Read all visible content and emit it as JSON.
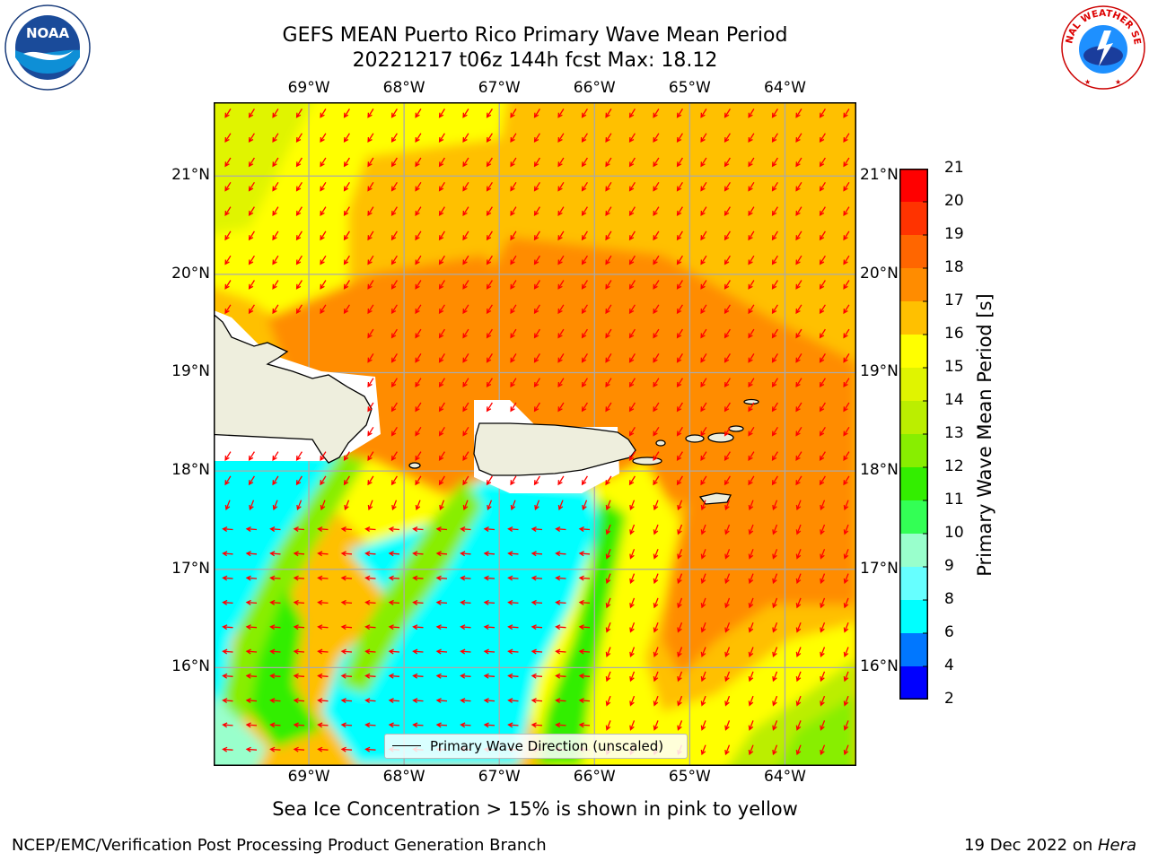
{
  "header": {
    "title_line1": "GEFS MEAN Puerto Rico Primary Wave Mean Period",
    "title_line2": "20221217 t06z 144h fcst   Max: 18.12"
  },
  "logos": {
    "left_name": "noaa-logo",
    "left_text": "NOAA",
    "right_name": "national-weather-service-logo",
    "right_text": "NATIONAL WEATHER SERVICE"
  },
  "map": {
    "lon_labels": [
      "69°W",
      "68°W",
      "67°W",
      "66°W",
      "65°W",
      "64°W"
    ],
    "lat_labels": [
      "21°N",
      "20°N",
      "19°N",
      "18°N",
      "17°N",
      "16°N"
    ],
    "lon_values": [
      -69,
      -68,
      -67,
      -66,
      -65,
      -64
    ],
    "lat_values": [
      21,
      20,
      19,
      18,
      17,
      16
    ],
    "lon_range": [
      -70,
      -63.25
    ],
    "lat_range": [
      15,
      21.75
    ],
    "legend_label": "Primary Wave Direction (unscaled)",
    "arrow_color": "#ff0000",
    "land_color": "#eeeedd"
  },
  "colorbar": {
    "label": "Primary Wave Mean Period [s]",
    "ticks": [
      "21",
      "20",
      "19",
      "18",
      "17",
      "16",
      "15",
      "14",
      "13",
      "12",
      "11",
      "10",
      "9",
      "8",
      "6",
      "4",
      "2"
    ],
    "colors": [
      "#ff0000",
      "#ff3300",
      "#ff6600",
      "#ff8c00",
      "#ffc000",
      "#ffff00",
      "#e0f400",
      "#bbee00",
      "#88ee00",
      "#33ee00",
      "#33ff55",
      "#99ffcc",
      "#66ffff",
      "#00ffff",
      "#0077ff",
      "#0000ff"
    ]
  },
  "subtitle": "Sea Ice Concentration > 15% is shown in pink to yellow",
  "footer": {
    "left": "NCEP/EMC/Verification Post Processing Product Generation Branch",
    "right_prefix": "19 Dec 2022 on ",
    "right_italic": "Hera"
  }
}
